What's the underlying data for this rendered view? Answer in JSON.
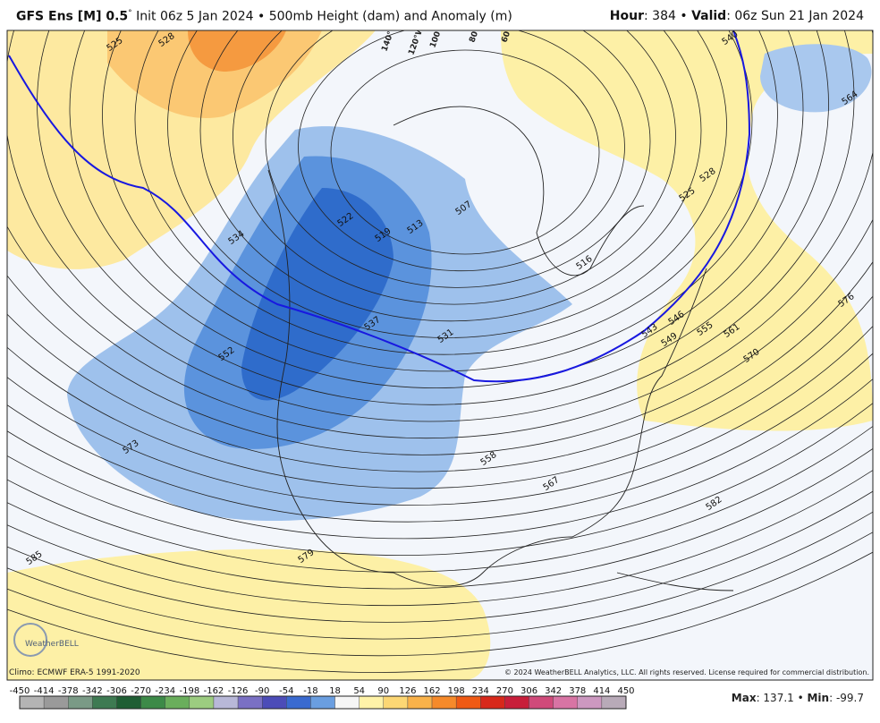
{
  "header": {
    "model": "GFS Ens [M] 0.5",
    "degree": "°",
    "description": " Init 06z 5 Jan 2024 • 500mb Height (dam) and Anomaly (m)",
    "hour_label": "Hour",
    "hour_value": ": 384 • ",
    "valid_label": "Valid",
    "valid_value": ": 06z Sun 21 Jan 2024"
  },
  "map": {
    "longitude_labels": [
      "140°W",
      "120°W",
      "100°W",
      "80°W",
      "60°W"
    ],
    "contour_labels": [
      "525",
      "528",
      "534",
      "522",
      "519",
      "513",
      "507",
      "516",
      "537",
      "531",
      "552",
      "573",
      "558",
      "567",
      "585",
      "579",
      "582",
      "570",
      "561",
      "555",
      "549",
      "546",
      "543",
      "525",
      "528",
      "564",
      "576",
      "540"
    ],
    "logo": "WeatherBELL"
  },
  "footer": {
    "climo": "Climo: ECMWF ERA-5 1991-2020",
    "copyright": "© 2024 WeatherBELL Analytics, LLC. All rights reserved. License required for commercial distribution.",
    "max_label": "Max",
    "max_value": ": 137.1 • ",
    "min_label": "Min",
    "min_value": ": -99.7"
  },
  "colorbar": {
    "ticks": [
      -450,
      -414,
      -378,
      -342,
      -306,
      -270,
      -234,
      -198,
      -162,
      -126,
      -90,
      -54,
      -18,
      18,
      54,
      90,
      126,
      162,
      198,
      234,
      270,
      306,
      342,
      378,
      414,
      450
    ],
    "colors": [
      "#b4b4b4",
      "#9a9a9a",
      "#7a9a86",
      "#3e7a52",
      "#1f5e34",
      "#3d8a48",
      "#6aae5c",
      "#9ccc80",
      "#b8b8d8",
      "#7a70c4",
      "#4c4cb8",
      "#3a6ad0",
      "#6a9ee0",
      "#f6f6f6",
      "#fff3a8",
      "#fcd774",
      "#f9b24a",
      "#f68a2a",
      "#ef5a14",
      "#d8281a",
      "#c81e3a",
      "#d04a7a",
      "#d874a4",
      "#cc98c0",
      "#b8aab8"
    ]
  }
}
